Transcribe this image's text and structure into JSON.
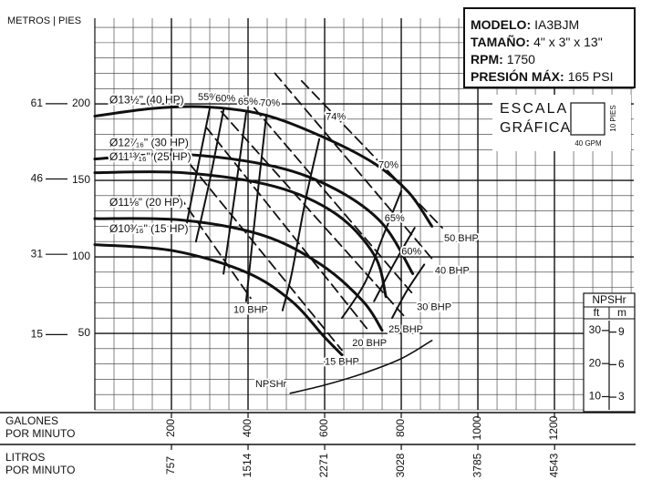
{
  "chart_data": {
    "type": "pump-curve",
    "axis_heading": "METROS | PIES",
    "x_label": [
      "GALONES",
      "POR MINUTO"
    ],
    "x2_label": [
      "LITROS",
      "POR MINUTO"
    ],
    "xlim": [
      0,
      1407
    ],
    "xticks": [
      200,
      400,
      600,
      800,
      1000,
      1200
    ],
    "x2lim": [
      0,
      5325
    ],
    "x2ticks": [
      757,
      1514,
      2271,
      3028,
      3785,
      4543
    ],
    "ylim": [
      0,
      256
    ],
    "yticks": [
      50,
      100,
      150,
      200
    ],
    "y2lim": [
      0,
      78.03
    ],
    "y2ticks": [
      15,
      31,
      46,
      61
    ],
    "grid": true,
    "color": "#111111",
    "series": [
      {
        "name": "Ø13½\" (40 HP)",
        "x": [
          0,
          150,
          290,
          440,
          590,
          730,
          820,
          880
        ],
        "values": [
          192,
          197,
          198,
          193,
          179,
          161,
          142,
          120
        ]
      },
      {
        "name": "Ø12⁷⁄₁₆\" (30 HP)",
        "x": [
          0,
          230,
          470,
          630,
          750,
          830
        ],
        "values": [
          164,
          167,
          159,
          144,
          122,
          89
        ]
      },
      {
        "name": "Ø11¹³⁄₁₆\" (25 HP)",
        "x": [
          0,
          230,
          470,
          630,
          730,
          760
        ],
        "values": [
          155,
          155,
          146,
          128,
          101,
          74
        ]
      },
      {
        "name": "Ø11⅛\" (20 HP)",
        "x": [
          0,
          230,
          440,
          590,
          700,
          750
        ],
        "values": [
          125,
          124,
          114,
          95,
          71,
          52
        ]
      },
      {
        "name": "Ø10³⁄₁₆\" (15 HP)",
        "x": [
          0,
          205,
          395,
          514,
          598,
          645
        ],
        "values": [
          108,
          104,
          90,
          71,
          48,
          36
        ]
      }
    ],
    "efficiency": [
      {
        "name": "55%",
        "x": [
          300,
          270,
          240
        ],
        "values": [
          197,
          160,
          122
        ]
      },
      {
        "name": "60%",
        "x": [
          336,
          300,
          264
        ],
        "values": [
          196,
          150,
          110
        ]
      },
      {
        "name": "65%",
        "x": [
          395,
          365,
          336
        ],
        "values": [
          194,
          140,
          89
        ]
      },
      {
        "name": "70%",
        "x": [
          448,
          420,
          395
        ],
        "values": [
          193,
          130,
          71
        ]
      },
      {
        "name": "74%",
        "x": [
          586,
          550,
          514,
          490
        ],
        "values": [
          177,
          137,
          89,
          65
        ]
      },
      {
        "name": "70%",
        "x": [
          800,
          750,
          705,
          645
        ],
        "values": [
          143,
          112,
          83,
          60
        ]
      },
      {
        "name": "65%",
        "x": [
          835,
          780,
          729
        ],
        "values": [
          119,
          95,
          71
        ]
      },
      {
        "name": "60%",
        "x": [
          860,
          815,
          776
        ],
        "values": [
          95,
          78,
          60
        ]
      }
    ],
    "bhp": [
      {
        "name": "10 BHP",
        "x": [
          220,
          407
        ],
        "values": [
          140,
          73
        ]
      },
      {
        "name": "15 BHP",
        "x": [
          250,
          645
        ],
        "values": [
          160,
          39
        ]
      },
      {
        "name": "20 BHP",
        "x": [
          290,
          717
        ],
        "values": [
          185,
          51
        ]
      },
      {
        "name": "25 BHP",
        "x": [
          330,
          812
        ],
        "values": [
          195,
          60
        ]
      },
      {
        "name": "30 BHP",
        "x": [
          390,
          836
        ],
        "values": [
          205,
          74
        ]
      },
      {
        "name": "40 BHP",
        "x": [
          470,
          883
        ],
        "values": [
          220,
          98
        ]
      },
      {
        "name": "50 BHP",
        "x": [
          540,
          907
        ],
        "values": [
          215,
          119
        ]
      }
    ],
    "npshr": {
      "name": "NPSHr",
      "x": [
        510,
        600,
        700,
        800,
        880
      ],
      "values": [
        11,
        13.5,
        17,
        21.5,
        27
      ]
    },
    "npshr_scale": {
      "title": "NPSHr",
      "ft_label": "ft",
      "m_label": "m",
      "ylim": [
        6,
        33
      ],
      "yticks": [
        10,
        20,
        30
      ],
      "mlim": [
        1.83,
        10.06
      ],
      "mticks": [
        3,
        6,
        9
      ]
    },
    "model_box": [
      [
        "MODELO:",
        "IA3BJM"
      ],
      [
        "TAMAÑO:",
        "4\" x 3\" x 13\""
      ],
      [
        "RPM:",
        "1750"
      ],
      [
        "PRESIÓN MÁX:",
        "165 PSI"
      ]
    ],
    "scale_box": {
      "title": [
        "ESCALA",
        "GRÁFICA"
      ],
      "height_label": "10 PIES",
      "width_label": "40 GPM"
    }
  }
}
